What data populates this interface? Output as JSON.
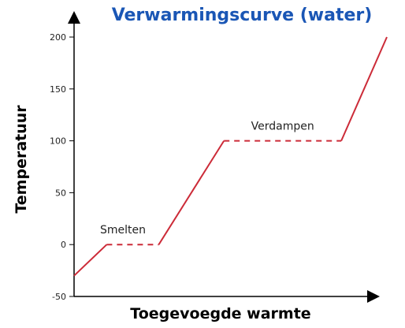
{
  "chart_data": {
    "type": "line",
    "title": "Verwarmingscurve (water)",
    "xlabel": "Toegevoegde warmte",
    "ylabel": "Temperatuur",
    "ylim": [
      -50,
      200
    ],
    "yticks": [
      -50,
      0,
      50,
      100,
      150,
      200
    ],
    "xticks_shown": false,
    "grid": false,
    "series": [
      {
        "segments": [
          {
            "style": "solid",
            "points": [
              [
                0,
                -30
              ],
              [
                1.0,
                0
              ]
            ]
          },
          {
            "style": "dashed",
            "points": [
              [
                1.0,
                0
              ],
              [
                2.6,
                0
              ]
            ]
          },
          {
            "style": "solid",
            "points": [
              [
                2.6,
                0
              ],
              [
                4.6,
                100
              ]
            ]
          },
          {
            "style": "dashed",
            "points": [
              [
                4.6,
                100
              ],
              [
                8.2,
                100
              ]
            ]
          },
          {
            "style": "solid",
            "points": [
              [
                8.2,
                100
              ],
              [
                9.6,
                200
              ]
            ]
          }
        ]
      }
    ],
    "annotations": [
      {
        "text": "Smelten",
        "x": 1.5,
        "y": 0
      },
      {
        "text": "Verdampen",
        "x": 6.4,
        "y": 100
      }
    ],
    "colors": {
      "title": "#1a56b5",
      "line": "#cc2b38",
      "axis": "#000000"
    }
  }
}
